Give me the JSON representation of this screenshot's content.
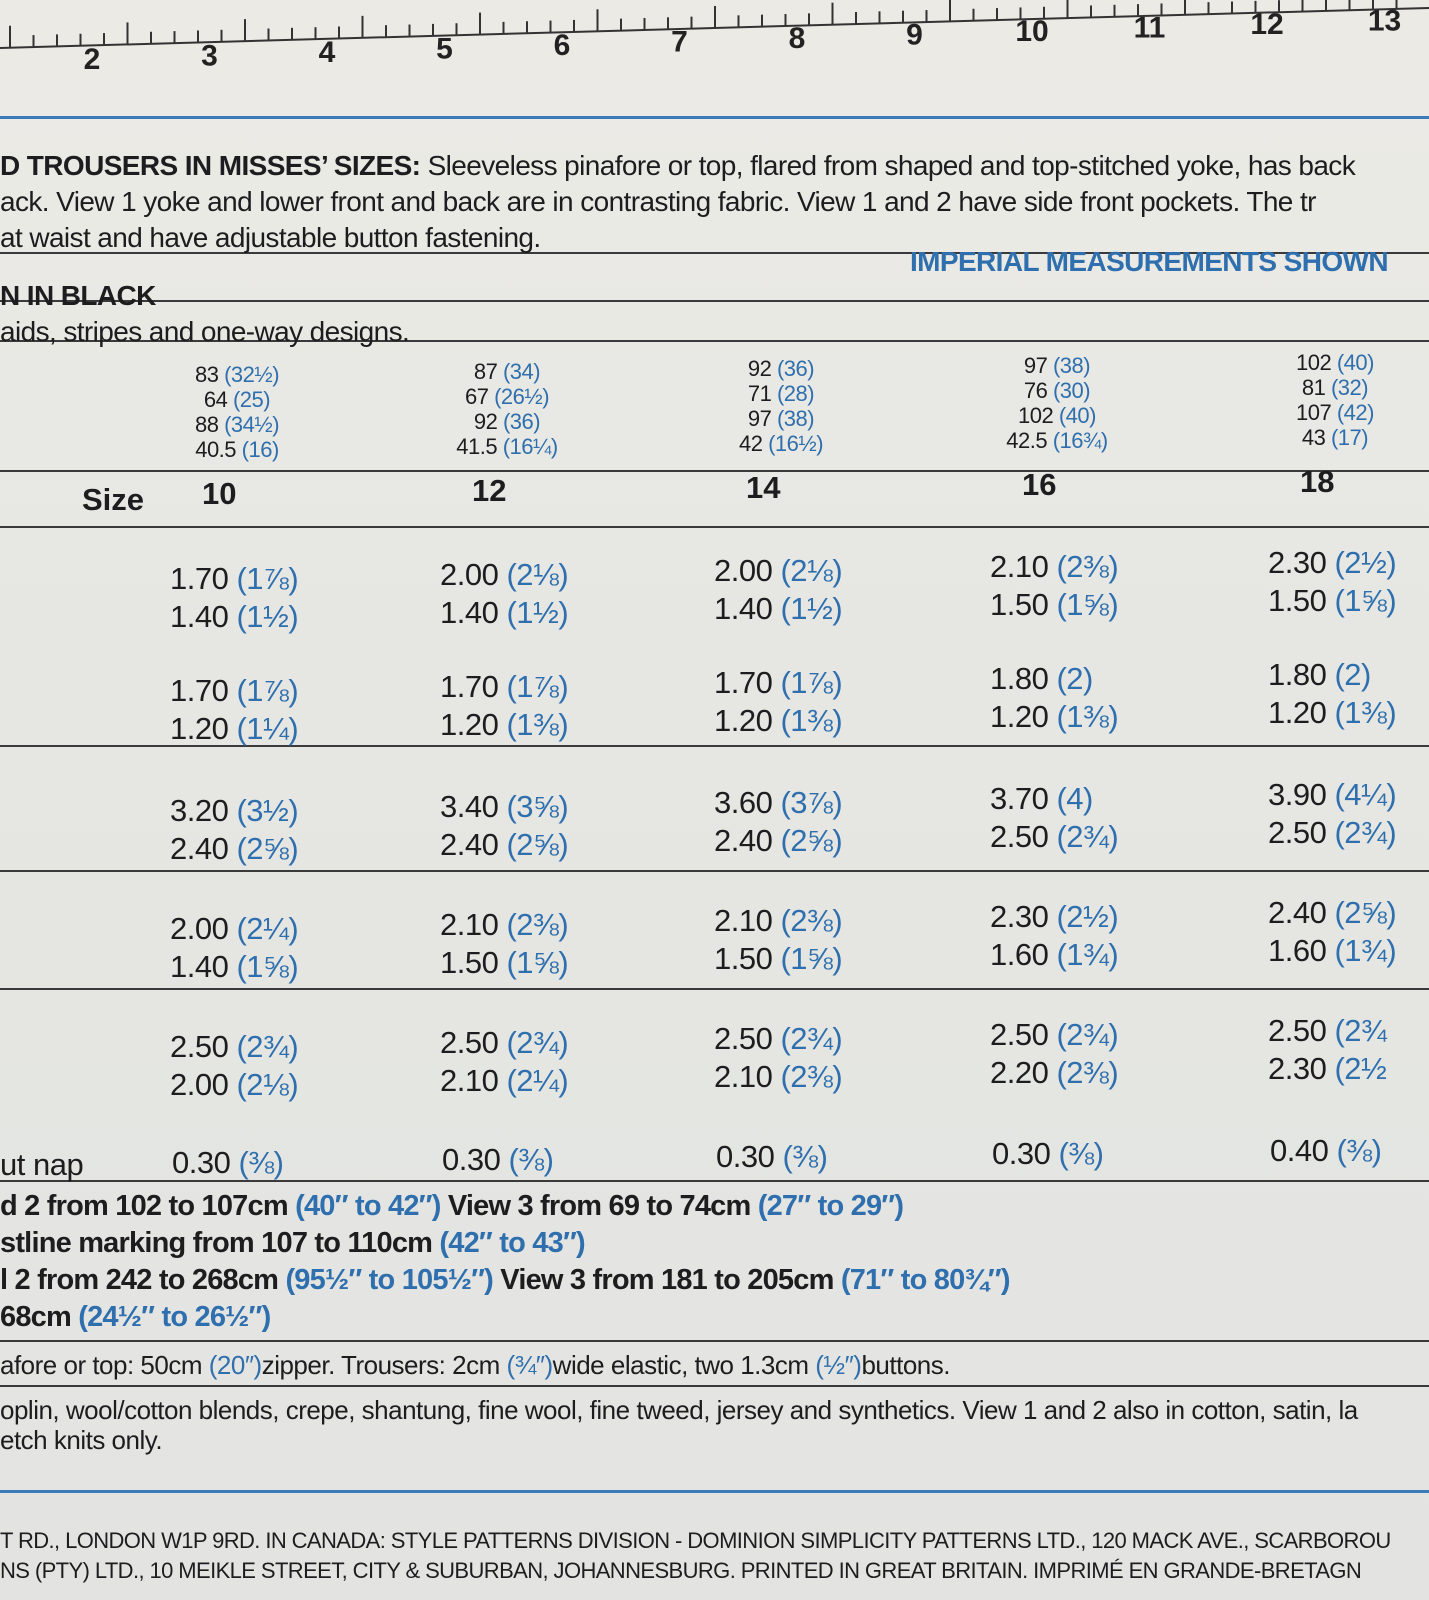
{
  "ruler": [
    "2",
    "3",
    "4",
    "5",
    "6",
    "7",
    "8",
    "9",
    "10",
    "11",
    "12",
    "13"
  ],
  "description": {
    "heading": "D TROUSERS IN MISSES’ SIZES:",
    "lines": [
      " Sleeveless pinafore or top, flared from shaped and top-stitched yoke, has back",
      "ack. View 1 yoke and lower front and back are in contrasting fabric. View 1 and 2 have side front pockets. The tr",
      " at waist and have adjustable button fastening."
    ]
  },
  "imperial_note": "IMPERIAL MEASUREMENTS SHOWN",
  "black_note": "N IN BLACK",
  "designs_note": "aids, stripes and one-way designs.",
  "body_measurements": [
    [
      [
        "83",
        "(32½)"
      ],
      [
        "64",
        "(25)"
      ],
      [
        "88",
        "(34½)"
      ],
      [
        "40.5",
        "(16)"
      ]
    ],
    [
      [
        "87",
        "(34)"
      ],
      [
        "67",
        "(26½)"
      ],
      [
        "92",
        "(36)"
      ],
      [
        "41.5",
        "(16¼)"
      ]
    ],
    [
      [
        "92",
        "(36)"
      ],
      [
        "71",
        "(28)"
      ],
      [
        "97",
        "(38)"
      ],
      [
        "42",
        "(16½)"
      ]
    ],
    [
      [
        "97",
        "(38)"
      ],
      [
        "76",
        "(30)"
      ],
      [
        "102",
        "(40)"
      ],
      [
        "42.5",
        "(16¾)"
      ]
    ],
    [
      [
        "102",
        "(40)"
      ],
      [
        "81",
        "(32)"
      ],
      [
        "107",
        "(42)"
      ],
      [
        "43",
        "(17)"
      ]
    ]
  ],
  "size_label": "Size",
  "sizes": [
    "10",
    "12",
    "14",
    "16",
    "18"
  ],
  "yardage": [
    [
      [
        [
          "1.70",
          "(1⅞)"
        ],
        [
          "1.40",
          "(1½)"
        ]
      ],
      [
        [
          "2.00",
          "(2⅛)"
        ],
        [
          "1.40",
          "(1½)"
        ]
      ],
      [
        [
          "2.00",
          "(2⅛)"
        ],
        [
          "1.40",
          "(1½)"
        ]
      ],
      [
        [
          "2.10",
          "(2⅜)"
        ],
        [
          "1.50",
          "(1⅝)"
        ]
      ],
      [
        [
          "2.30",
          "(2½)"
        ],
        [
          "1.50",
          "(1⅝)"
        ]
      ]
    ],
    [
      [
        [
          "1.70",
          "(1⅞)"
        ],
        [
          "1.20",
          "(1¼)"
        ]
      ],
      [
        [
          "1.70",
          "(1⅞)"
        ],
        [
          "1.20",
          "(1⅜)"
        ]
      ],
      [
        [
          "1.70",
          "(1⅞)"
        ],
        [
          "1.20",
          "(1⅜)"
        ]
      ],
      [
        [
          "1.80",
          "(2)"
        ],
        [
          "1.20",
          "(1⅜)"
        ]
      ],
      [
        [
          "1.80",
          "(2)"
        ],
        [
          "1.20",
          "(1⅜)"
        ]
      ]
    ],
    [
      [
        [
          "3.20",
          "(3½)"
        ],
        [
          "2.40",
          "(2⅝)"
        ]
      ],
      [
        [
          "3.40",
          "(3⅝)"
        ],
        [
          "2.40",
          "(2⅝)"
        ]
      ],
      [
        [
          "3.60",
          "(3⅞)"
        ],
        [
          "2.40",
          "(2⅝)"
        ]
      ],
      [
        [
          "3.70",
          "(4)"
        ],
        [
          "2.50",
          "(2¾)"
        ]
      ],
      [
        [
          "3.90",
          "(4¼)"
        ],
        [
          "2.50",
          "(2¾)"
        ]
      ]
    ],
    [
      [
        [
          "2.00",
          "(2¼)"
        ],
        [
          "1.40",
          "(1⅝)"
        ]
      ],
      [
        [
          "2.10",
          "(2⅜)"
        ],
        [
          "1.50",
          "(1⅝)"
        ]
      ],
      [
        [
          "2.10",
          "(2⅜)"
        ],
        [
          "1.50",
          "(1⅝)"
        ]
      ],
      [
        [
          "2.30",
          "(2½)"
        ],
        [
          "1.60",
          "(1¾)"
        ]
      ],
      [
        [
          "2.40",
          "(2⅝)"
        ],
        [
          "1.60",
          "(1¾)"
        ]
      ]
    ],
    [
      [
        [
          "2.50",
          "(2¾)"
        ],
        [
          "2.00",
          "(2⅛)"
        ]
      ],
      [
        [
          "2.50",
          "(2¾)"
        ],
        [
          "2.10",
          "(2¼)"
        ]
      ],
      [
        [
          "2.50",
          "(2¾)"
        ],
        [
          "2.10",
          "(2⅜)"
        ]
      ],
      [
        [
          "2.50",
          "(2¾)"
        ],
        [
          "2.20",
          "(2⅜)"
        ]
      ],
      [
        [
          "2.50",
          "(2¾"
        ],
        [
          "2.30",
          "(2½"
        ]
      ]
    ]
  ],
  "nap_label": "ut nap",
  "nap": [
    [
      "0.30",
      "(⅜)"
    ],
    [
      "0.30",
      "(⅜)"
    ],
    [
      "0.30",
      "(⅜)"
    ],
    [
      "0.30",
      "(⅜)"
    ],
    [
      "0.40",
      "(⅜)"
    ]
  ],
  "finished": [
    [
      "d 2 from 102 to 107cm ",
      "(40″ to 42″)",
      " View 3 from 69 to 74cm ",
      "(27″ to 29″)"
    ],
    [
      "stline marking from 107 to 110cm ",
      "(42″ to 43″)"
    ],
    [
      "l 2 from 242 to 268cm ",
      "(95½″ to 105½″)",
      " View 3 from 181 to 205cm ",
      "(71″ to 80¾″)"
    ],
    [
      "68cm ",
      "(24½″ to 26½″)"
    ]
  ],
  "notions": [
    "afore or top: 50cm ",
    "(20″)",
    "zipper. Trousers: 2cm ",
    "(¾″)",
    "wide elastic, two 1.3cm ",
    "(½″)",
    "buttons."
  ],
  "fabrics": [
    "oplin, wool/cotton blends, crepe, shantung, fine wool, fine tweed, jersey and synthetics. View 1 and 2 also in cotton, satin, la",
    "etch knits only."
  ],
  "footer": [
    "T RD., LONDON W1P 9RD. IN CANADA: STYLE PATTERNS DIVISION - DOMINION SIMPLICITY PATTERNS LTD., 120 MACK AVE., SCARBOROU",
    "NS (PTY) LTD., 10 MEIKLE STREET, CITY & SUBURBAN, JOHANNESBURG. PRINTED IN GREAT BRITAIN. IMPRIMÉ EN GRANDE-BRETAGN"
  ]
}
